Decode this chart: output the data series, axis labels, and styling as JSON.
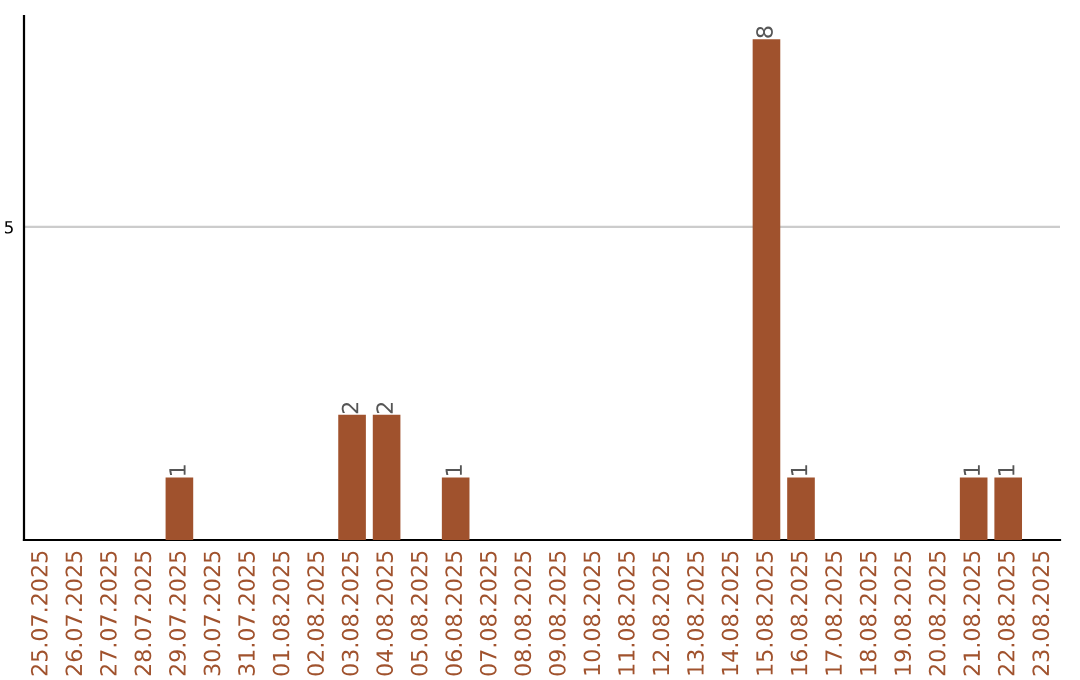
{
  "chart_data": {
    "type": "bar",
    "categories": [
      "25.07.2025",
      "26.07.2025",
      "27.07.2025",
      "28.07.2025",
      "29.07.2025",
      "30.07.2025",
      "31.07.2025",
      "01.08.2025",
      "02.08.2025",
      "03.08.2025",
      "04.08.2025",
      "05.08.2025",
      "06.08.2025",
      "07.08.2025",
      "08.08.2025",
      "09.08.2025",
      "10.08.2025",
      "11.08.2025",
      "12.08.2025",
      "13.08.2025",
      "14.08.2025",
      "15.08.2025",
      "16.08.2025",
      "17.08.2025",
      "18.08.2025",
      "19.08.2025",
      "20.08.2025",
      "21.08.2025",
      "22.08.2025",
      "23.08.2025"
    ],
    "values": [
      0,
      0,
      0,
      0,
      1,
      0,
      0,
      0,
      0,
      2,
      2,
      0,
      1,
      0,
      0,
      0,
      0,
      0,
      0,
      0,
      0,
      8,
      1,
      0,
      0,
      0,
      0,
      1,
      1,
      0
    ],
    "value_labels": [
      null,
      null,
      null,
      null,
      "1",
      null,
      null,
      null,
      null,
      "2",
      "2",
      null,
      "1",
      null,
      null,
      null,
      null,
      null,
      null,
      null,
      null,
      "8",
      "1",
      null,
      null,
      null,
      null,
      "1",
      "1",
      null
    ],
    "color": "#a0522d",
    "ylim": [
      0,
      8.37
    ],
    "yticks": [
      5
    ],
    "grid": "y"
  }
}
